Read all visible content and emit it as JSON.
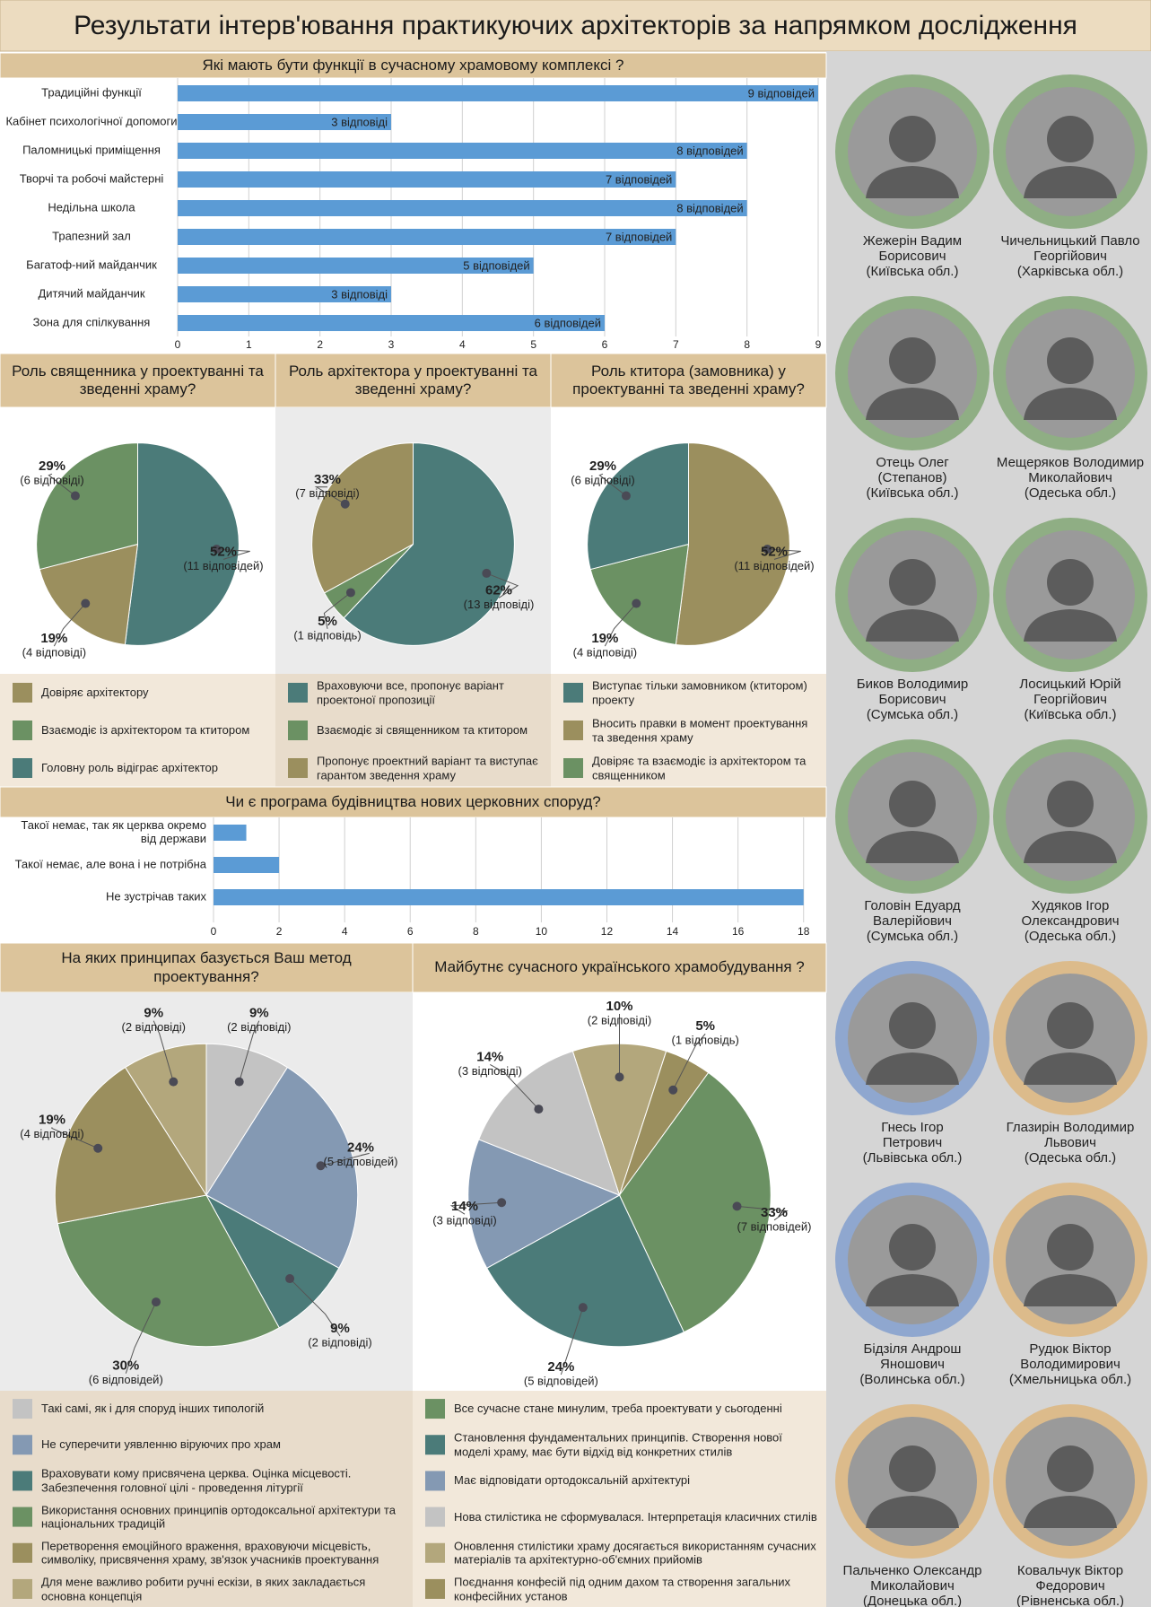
{
  "title": "Результати інтерв'ювання практикуючих архітекторів за напрямком дослідження",
  "chart_data": [
    {
      "type": "bar",
      "orientation": "horizontal",
      "title": "Які мають бути функції в сучасному храмовому комплексі ?",
      "categories": [
        "Традиційні функції",
        "Кабінет психологічної допомоги",
        "Паломницькі приміщення",
        "Творчі та робочі майстерні",
        "Недільна школа",
        "Трапезний зал",
        "Багатоф-ний майданчик",
        "Дитячий майданчик",
        "Зона для спілкування"
      ],
      "values": [
        9,
        3,
        8,
        7,
        8,
        7,
        5,
        3,
        6
      ],
      "value_labels": [
        "9 відповідей",
        "3 відповіді",
        "8 відповідей",
        "7 відповідей",
        "8 відповідей",
        "7 відповідей",
        "5 відповідей",
        "3 відповіді",
        "6 відповідей"
      ],
      "color": "#5b9bd5",
      "xlim": [
        0,
        9
      ],
      "xticks": [
        0,
        1,
        2,
        3,
        4,
        5,
        6,
        7,
        8,
        9
      ],
      "grid": true
    },
    {
      "type": "pie",
      "title": "Роль священника у проектуванні та зведенні храму?",
      "categories": [
        "Довіряє архітектору",
        "Взаємодіє із архітектором та ктитором",
        "Головну роль відіграє архітектор"
      ],
      "values": [
        19,
        29,
        52
      ],
      "value_labels": [
        "19%",
        "29%",
        "52%"
      ],
      "answer_labels": [
        "(4 відповіді)",
        "(6 відповіді)",
        "(11 відповідей)"
      ],
      "colors": [
        "#9b8f5e",
        "#6b9163",
        "#4b7b79"
      ]
    },
    {
      "type": "pie",
      "title": "Роль архітектора у проектуванні та зведенні храму?",
      "categories": [
        "Враховуючи все, пропонує варіант проектоної пропозиції",
        "Взаємодіє зі священником та ктитором",
        "Пропонує проектний варіант та виступає гарантом зведення храму"
      ],
      "values": [
        62,
        5,
        33
      ],
      "value_labels": [
        "62%",
        "5%",
        "33%"
      ],
      "answer_labels": [
        "(13 відповіді)",
        "(1 відповідь)",
        "(7 відповіді)"
      ],
      "colors": [
        "#4b7b79",
        "#6b9163",
        "#9b8f5e"
      ]
    },
    {
      "type": "pie",
      "title": "Роль ктитора (замовника) у проектуванні та зведенні храму?",
      "categories": [
        "Виступає тільки замовником (ктитором) проекту",
        "Вносить правки в момент проектування та зведення храму",
        "Довіряє та взаємодіє із архітектором та священником"
      ],
      "values": [
        29,
        52,
        19
      ],
      "value_labels": [
        "29%",
        "52%",
        "19%"
      ],
      "answer_labels": [
        "(6 відповіді)",
        "(11 відповідей)",
        "(4 відповіді)"
      ],
      "colors": [
        "#4b7b79",
        "#9b8f5e",
        "#6b9163"
      ]
    },
    {
      "type": "bar",
      "orientation": "horizontal",
      "title": "Чи є програма будівництва нових церковних споруд?",
      "categories": [
        "Такої немає, так як церква окремо від держави",
        "Такої немає, але вона і не потрібна",
        "Не зустрічав таких"
      ],
      "values": [
        1,
        2,
        18
      ],
      "color": "#5b9bd5",
      "xlim": [
        0,
        18.5
      ],
      "xticks": [
        0,
        2,
        4,
        6,
        8,
        10,
        12,
        14,
        16,
        18
      ],
      "grid": true
    },
    {
      "type": "pie",
      "title": "На яких принципах базується Ваш метод проектування?",
      "categories": [
        "Такі самі, як і для споруд інших типологій",
        "Не суперечити уявленню віруючих про храм",
        "Враховувати кому присвячена церква. Оцінка місцевості. Забезпечення головної цілі - проведення літургії",
        "Використання основних принципів ортодоксальної архітектури та національних традицій",
        "Перетворення емоційного враження, враховуючи місцевість, символіку, присвячення храму, зв'язок учасників проектування",
        "Для мене важливо робити ручні ескізи, в яких закладається основна концепція"
      ],
      "values": [
        9,
        24,
        9,
        30,
        19,
        9
      ],
      "value_labels": [
        "9%",
        "24%",
        "9%",
        "30%",
        "19%",
        "9%"
      ],
      "answer_labels": [
        "(2 відповіді)",
        "(5 відповідей)",
        "(2 відповіді)",
        "(6 відповідей)",
        "(4 відповіді)",
        "(2 відповіді)"
      ],
      "colors": [
        "#c3c3c3",
        "#8499b3",
        "#4b7b79",
        "#6b9163",
        "#9b8f5e",
        "#b3a77c"
      ]
    },
    {
      "type": "pie",
      "title": "Майбутнє сучасного українського храмобудування ?",
      "categories": [
        "Все сучасне стане минулим, треба проектувати у сьогоденні",
        "Становлення фундаментальних принципів. Створення нової моделі храму, має бути відхід від конкретних стилів",
        "Має відповідати ортодоксальній архітектурі",
        "Нова стилістика не сформувалася. Інтерпретація класичних стилів",
        "Оновлення стилістики храму досягається використанням сучасних матеріалів та архітектурно-об'ємних прийомів",
        "Поєднання конфесій під одним дахом та створення загальних конфесійних установ"
      ],
      "values": [
        33,
        24,
        14,
        14,
        10,
        5
      ],
      "value_labels": [
        "33%",
        "24%",
        "14%",
        "14%",
        "10%",
        "5%"
      ],
      "answer_labels": [
        "(7 відповідей)",
        "(5 відповідей)",
        "(3 відповіді)",
        "(3 відповіді)",
        "(2 відповіді)",
        "(1 відповідь)"
      ],
      "colors": [
        "#6b9163",
        "#4b7b79",
        "#8499b3",
        "#c3c3c3",
        "#b3a77c",
        "#9b8f5e"
      ]
    }
  ],
  "people": [
    {
      "lines": [
        "Жежерін Вадим",
        "Борисович",
        "(Київська обл.)"
      ],
      "ring": "#8fae84"
    },
    {
      "lines": [
        "Чичельницький Павло",
        "Георгійович",
        "(Харківська обл.)"
      ],
      "ring": "#8fae84"
    },
    {
      "lines": [
        "Отець Олег",
        "(Степанов)",
        "(Київська обл.)"
      ],
      "ring": "#8fae84"
    },
    {
      "lines": [
        "Мещеряков Володимир",
        "Миколайович",
        "(Одеська обл.)"
      ],
      "ring": "#8fae84"
    },
    {
      "lines": [
        "Биков Володимир",
        "Борисович",
        "(Сумська обл.)"
      ],
      "ring": "#8fae84"
    },
    {
      "lines": [
        "Лосицький Юрій",
        "Георгійович",
        "(Київська обл.)"
      ],
      "ring": "#8fae84"
    },
    {
      "lines": [
        "Головін Едуард",
        "Валерійович",
        "(Сумська обл.)"
      ],
      "ring": "#8fae84"
    },
    {
      "lines": [
        "Худяков Ігор",
        "Олександрович",
        "(Одеська обл.)"
      ],
      "ring": "#8fae84"
    },
    {
      "lines": [
        "Гнесь Ігор",
        "Петрович",
        "(Львівська обл.)"
      ],
      "ring": "#8fa7cf"
    },
    {
      "lines": [
        "Глазирін Володимир",
        "Львович",
        "(Одеська обл.)"
      ],
      "ring": "#dcbb8b"
    },
    {
      "lines": [
        "Бідзіля Андрош",
        "Яношович",
        "(Волинська обл.)"
      ],
      "ring": "#8fa7cf"
    },
    {
      "lines": [
        "Рудюк Віктор",
        "Володимирович",
        "(Хмельницька обл.)"
      ],
      "ring": "#dcbb8b"
    },
    {
      "lines": [
        "Пальченко Олександр",
        "Миколайович",
        "(Донецька обл.)"
      ],
      "ring": "#dcbb8b"
    },
    {
      "lines": [
        "Ковальчук Віктор",
        "Федорович",
        "(Рівненська обл.)"
      ],
      "ring": "#dcbb8b"
    }
  ]
}
